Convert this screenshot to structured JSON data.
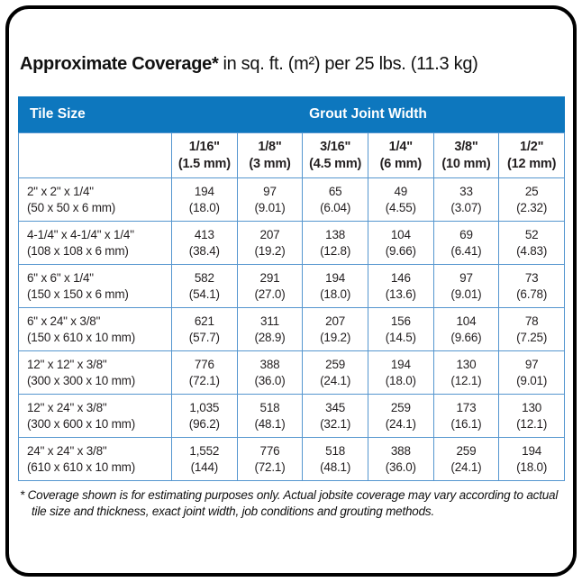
{
  "title": {
    "main": "Approximate Coverage*",
    "suffix": "in sq. ft. (m²) per 25 lbs. (11.3 kg)"
  },
  "table": {
    "tile_size_header": "Tile Size",
    "grout_header": "Grout Joint Width",
    "columns": [
      "1/16\"\n(1.5 mm)",
      "1/8\"\n(3 mm)",
      "3/16\"\n(4.5 mm)",
      "1/4\"\n(6 mm)",
      "3/8\"\n(10 mm)",
      "1/2\"\n(12 mm)"
    ],
    "rows": [
      {
        "tile": "2\" x 2\" x 1/4\"\n(50 x 50 x 6 mm)",
        "values": [
          "194\n(18.0)",
          "97\n(9.01)",
          "65\n(6.04)",
          "49\n(4.55)",
          "33\n(3.07)",
          "25\n(2.32)"
        ]
      },
      {
        "tile": "4-1/4\" x 4-1/4\" x 1/4\"\n(108 x 108 x 6 mm)",
        "values": [
          "413\n(38.4)",
          "207\n(19.2)",
          "138\n(12.8)",
          "104\n(9.66)",
          "69\n(6.41)",
          "52\n(4.83)"
        ]
      },
      {
        "tile": "6\" x 6\" x 1/4\"\n(150 x 150 x 6 mm)",
        "values": [
          "582\n(54.1)",
          "291\n(27.0)",
          "194\n(18.0)",
          "146\n(13.6)",
          "97\n(9.01)",
          "73\n(6.78)"
        ]
      },
      {
        "tile": "6\" x 24\" x 3/8\"\n(150 x 610 x 10 mm)",
        "values": [
          "621\n(57.7)",
          "311\n(28.9)",
          "207\n(19.2)",
          "156\n(14.5)",
          "104\n(9.66)",
          "78\n(7.25)"
        ]
      },
      {
        "tile": "12\" x 12\" x 3/8\"\n(300 x 300 x 10 mm)",
        "values": [
          "776\n(72.1)",
          "388\n(36.0)",
          "259\n(24.1)",
          "194\n(18.0)",
          "130\n(12.1)",
          "97\n(9.01)"
        ]
      },
      {
        "tile": "12\" x 24\" x 3/8\"\n(300 x 600 x 10 mm)",
        "values": [
          "1,035\n(96.2)",
          "518\n(48.1)",
          "345\n(32.1)",
          "259\n(24.1)",
          "173\n(16.1)",
          "130\n(12.1)"
        ]
      },
      {
        "tile": "24\" x 24\" x 3/8\"\n(610 x 610 x 10 mm)",
        "values": [
          "1,552\n(144)",
          "776\n(72.1)",
          "518\n(48.1)",
          "388\n(36.0)",
          "259\n(24.1)",
          "194\n(18.0)"
        ]
      }
    ]
  },
  "footnote": "* Coverage shown is for estimating purposes only. Actual jobsite coverage may vary according to actual tile size and thickness, exact joint width, job conditions and grouting methods.",
  "colors": {
    "header_bg": "#0d77be",
    "grid_line": "#5596cf",
    "card_border": "#000000",
    "text": "#231f20",
    "header_text": "#ffffff"
  }
}
